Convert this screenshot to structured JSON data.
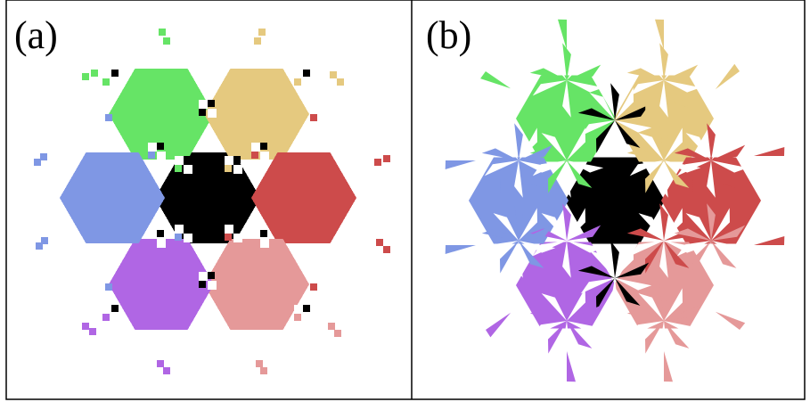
{
  "panels": [
    {
      "id": "a",
      "label": "(a)",
      "style": "pixelated"
    },
    {
      "id": "b",
      "label": "(b)",
      "style": "triangular-fan"
    }
  ],
  "tiles": [
    {
      "name": "center",
      "color": "#000000"
    },
    {
      "name": "top-left",
      "color": "#66e466"
    },
    {
      "name": "top-right",
      "color": "#e5c97f"
    },
    {
      "name": "right",
      "color": "#cd4b4b"
    },
    {
      "name": "bottom-right",
      "color": "#e59999"
    },
    {
      "name": "bottom-left",
      "color": "#b066e4"
    },
    {
      "name": "left",
      "color": "#7f97e4"
    }
  ],
  "accent_white": "#ffffff",
  "border_color": "#000000"
}
